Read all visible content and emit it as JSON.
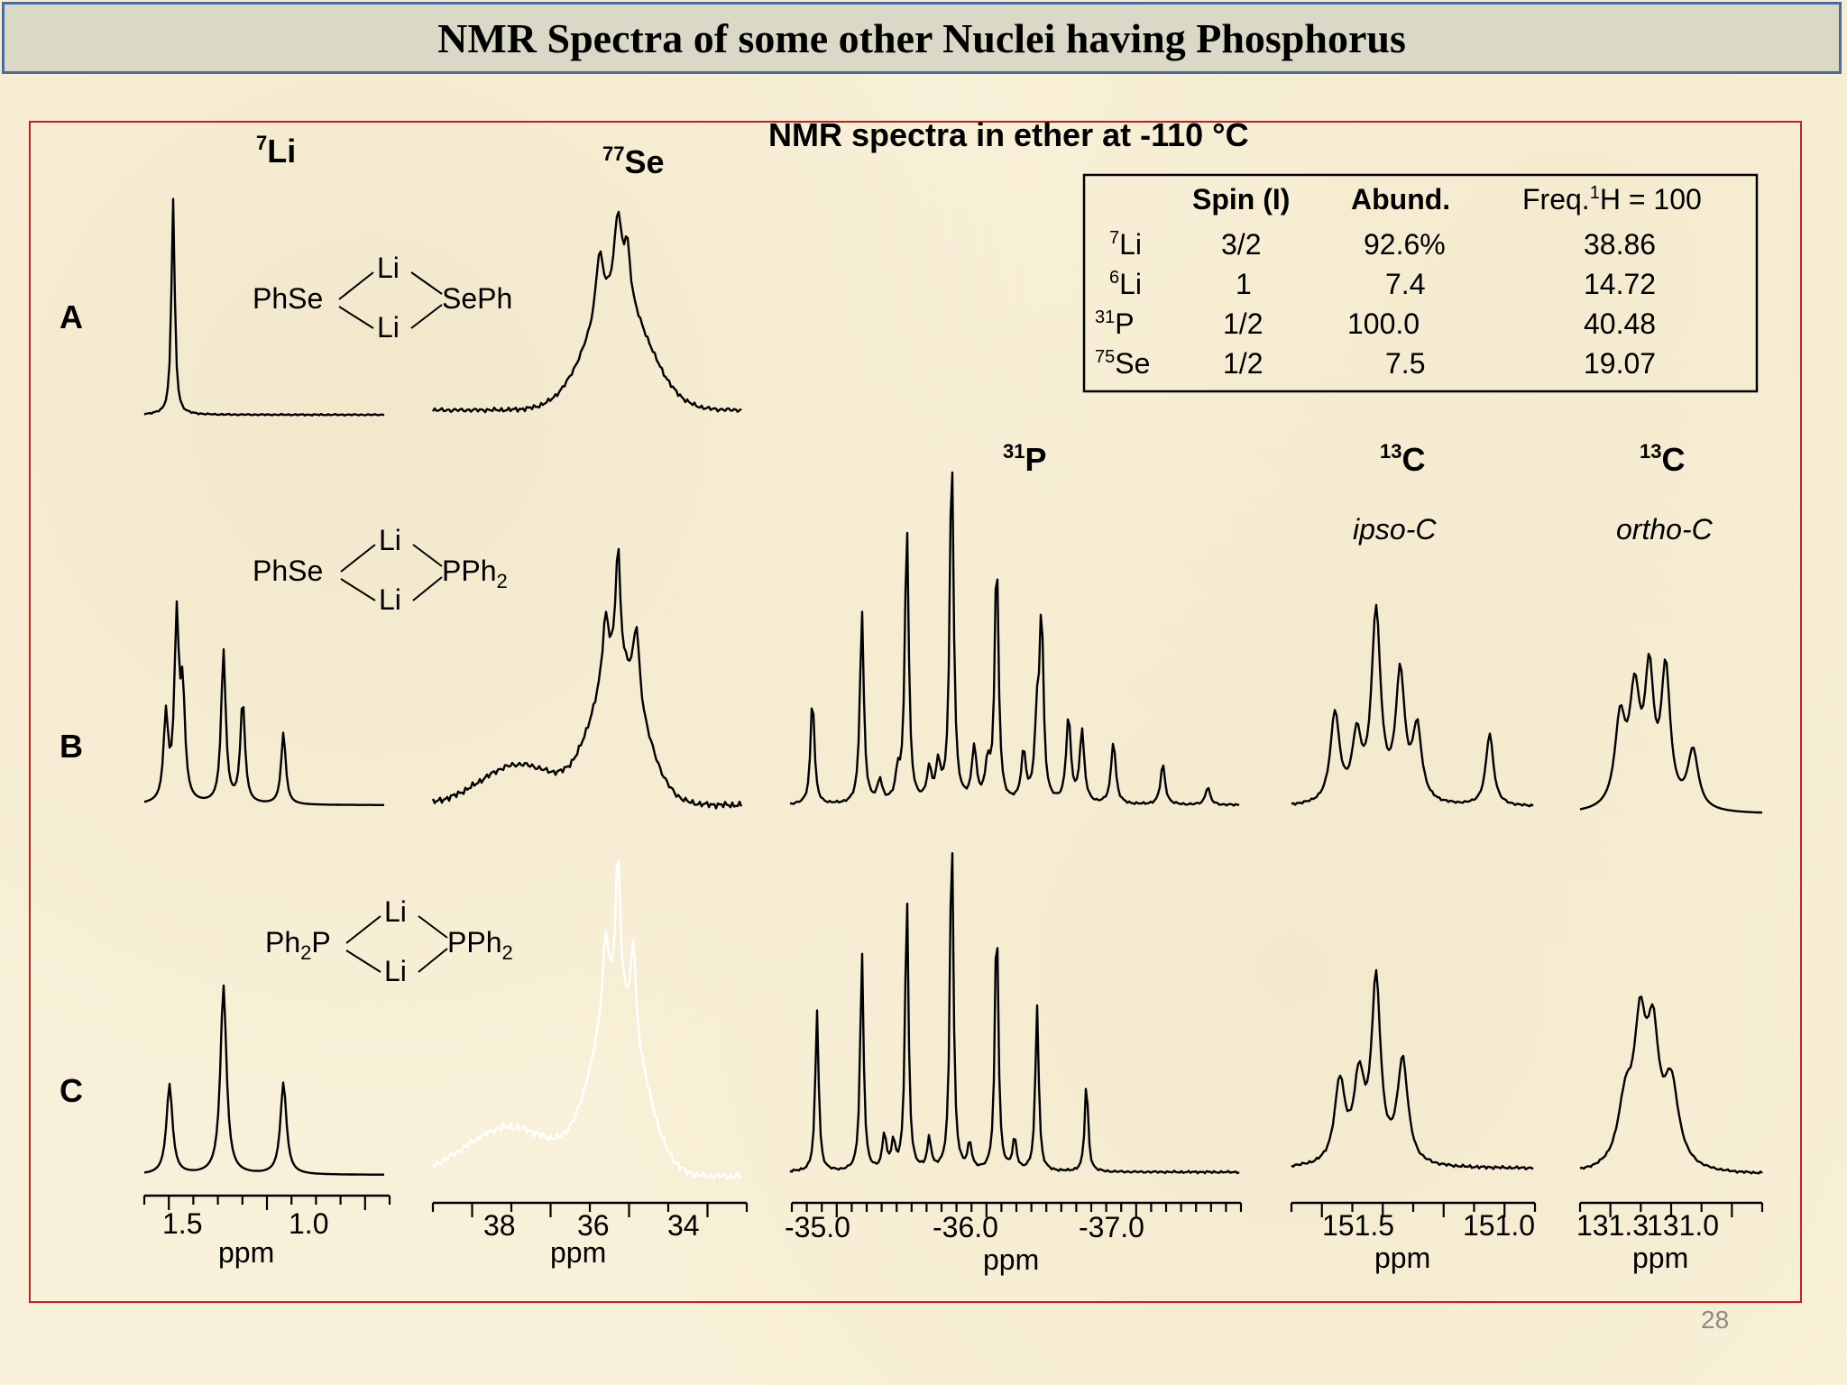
{
  "slide": {
    "title": "NMR Spectra of  some other Nuclei having Phosphorus",
    "page_number": "28"
  },
  "figure": {
    "main_title": "NMR spectra in ether at -110 °C",
    "rows": [
      "A",
      "B",
      "C"
    ],
    "column_headers": {
      "li": {
        "sup": "7",
        "base": "Li"
      },
      "se": {
        "sup": "77",
        "base": "Se"
      },
      "p": {
        "sup": "31",
        "base": "P"
      },
      "c_ipso": {
        "sup": "13",
        "base": "C",
        "sub": "ipso-C"
      },
      "c_ortho": {
        "sup": "13",
        "base": "C",
        "sub": "ortho-C"
      }
    },
    "structures": [
      {
        "row": "A",
        "left": "PhSe",
        "right": "SePh",
        "bridge": "Li"
      },
      {
        "row": "B",
        "left": "PhSe",
        "right": "PPh",
        "right_sub": "2",
        "bridge": "Li"
      },
      {
        "row": "C",
        "left": "Ph",
        "left_sub": "2",
        "left_tail": "P",
        "right": "PPh",
        "right_sub": "2",
        "bridge": "Li"
      }
    ],
    "table": {
      "headers": [
        "Spin (I)",
        "Abund.",
        "Freq.",
        "H = 100"
      ],
      "freq_sup": "1",
      "rows": [
        {
          "sup": "7",
          "base": "Li",
          "spin": "3/2",
          "abund": "92.6%",
          "freq": "38.86"
        },
        {
          "sup": "6",
          "base": "Li",
          "spin": "1",
          "abund": "7.4",
          "freq": "14.72"
        },
        {
          "sup": "31",
          "base": "P",
          "spin": "1/2",
          "abund": "100.0",
          "freq": "40.48"
        },
        {
          "sup": "75",
          "base": "Se",
          "spin": "1/2",
          "abund": "7.5",
          "freq": "19.07"
        }
      ]
    },
    "axes": [
      {
        "id": "li",
        "tick_labels": [
          "1.5",
          "1.0"
        ],
        "unit": "ppm"
      },
      {
        "id": "se",
        "tick_labels": [
          "38",
          "36",
          "34"
        ],
        "unit": "ppm"
      },
      {
        "id": "p",
        "tick_labels": [
          "-35.0",
          "-36.0",
          "-37.0"
        ],
        "unit": "ppm"
      },
      {
        "id": "c_ipso",
        "tick_labels": [
          "151.5",
          "151.0"
        ],
        "unit": "ppm"
      },
      {
        "id": "c_ortho",
        "tick_labels": [
          "131.3",
          "131.0"
        ],
        "unit": "ppm"
      }
    ]
  },
  "chart_data": [
    {
      "type": "line",
      "panel": "7Li A",
      "peaks_ppm": [
        1.55
      ]
    },
    {
      "type": "line",
      "panel": "7Li B",
      "peaks_ppm": [
        1.6,
        1.55,
        1.52,
        1.28,
        1.18,
        0.92
      ]
    },
    {
      "type": "line",
      "panel": "7Li C",
      "peaks_ppm": [
        1.57,
        1.26,
        0.94
      ]
    },
    {
      "type": "line",
      "panel": "77Se A",
      "center_ppm": 35.0
    },
    {
      "type": "line",
      "panel": "77Se B",
      "center_ppm": 35.0
    },
    {
      "type": "line",
      "panel": "77Se C",
      "center_ppm": 35.0
    },
    {
      "type": "line",
      "panel": "31P B",
      "x_range_ppm": [
        -34.9,
        -37.8
      ]
    },
    {
      "type": "line",
      "panel": "31P C",
      "x_range_ppm": [
        -34.9,
        -37.8
      ]
    },
    {
      "type": "line",
      "panel": "13C ipso-C B",
      "x_range_ppm": [
        151.9,
        150.9
      ]
    },
    {
      "type": "line",
      "panel": "13C ipso-C C",
      "x_range_ppm": [
        151.9,
        150.9
      ]
    },
    {
      "type": "line",
      "panel": "13C ortho-C B",
      "x_range_ppm": [
        131.5,
        130.8
      ]
    },
    {
      "type": "line",
      "panel": "13C ortho-C C",
      "x_range_ppm": [
        131.5,
        130.8
      ]
    }
  ],
  "colors": {
    "frame": "#c22222",
    "title_border": "#4b6b9a",
    "title_bg": "#dad8c6",
    "trace": "#000000",
    "hidden_trace": "#ffffff"
  }
}
